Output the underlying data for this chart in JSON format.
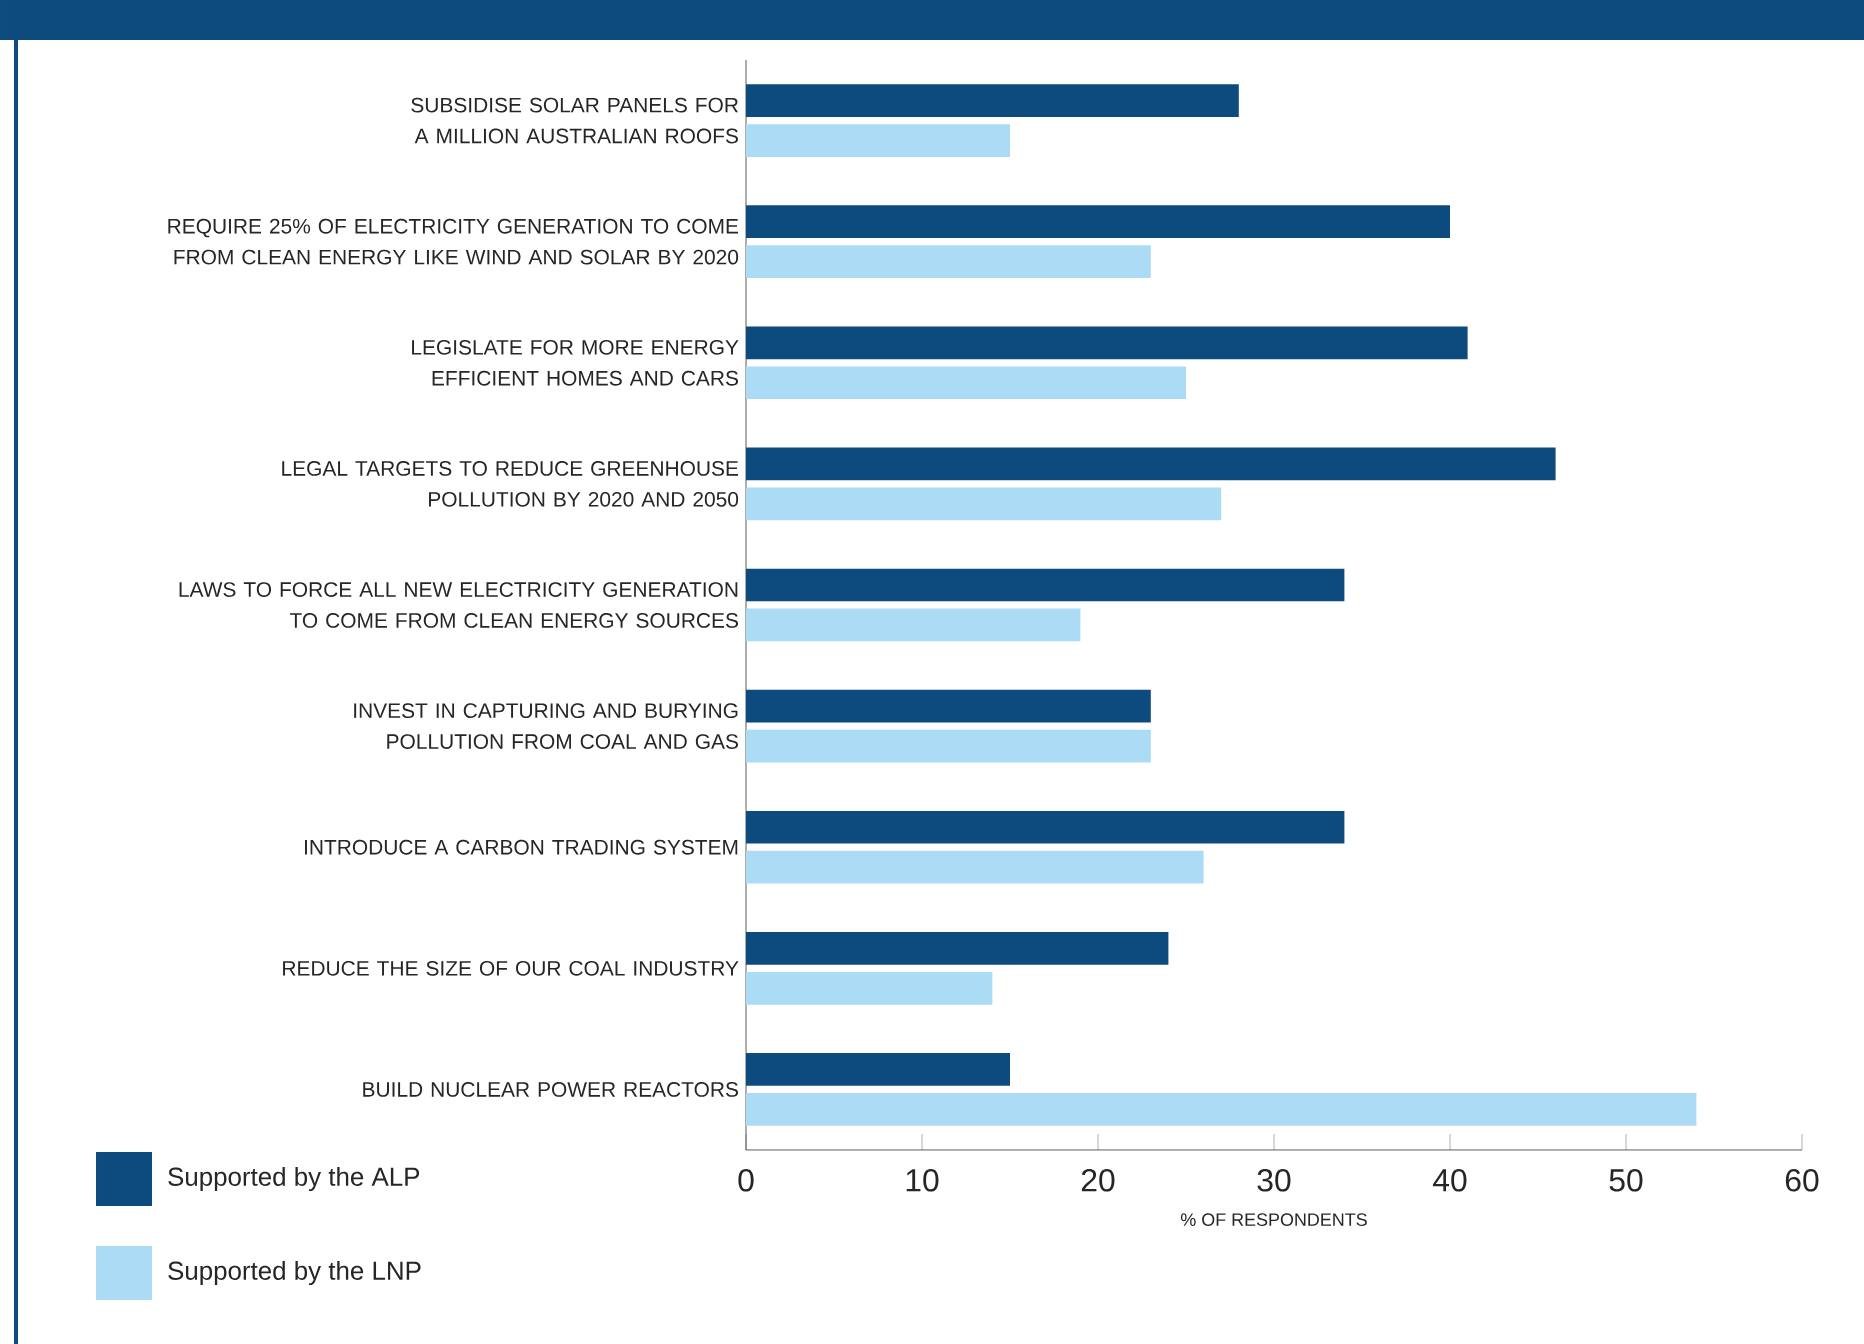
{
  "chart_data": {
    "type": "bar",
    "orientation": "horizontal",
    "xlabel": "% OF RESPONDENTS",
    "categories": [
      "SUBSIDISE SOLAR PANELS FOR A MILLION AUSTRALIAN ROOFS",
      "REQUIRE 25% OF ELECTRICITY GENERATION TO COME FROM CLEAN ENERGY LIKE WIND AND SOLAR BY 2020",
      "LEGISLATE FOR MORE ENERGY EFFICIENT HOMES AND CARS",
      "LEGAL TARGETS TO REDUCE GREENHOUSE POLLUTION BY 2020 AND 2050",
      "LAWS TO FORCE ALL NEW ELECTRICITY GENERATION TO COME FROM CLEAN ENERGY SOURCES",
      "INVEST IN CAPTURING AND BURYING POLLUTION FROM COAL AND GAS",
      "INTRODUCE A CARBON TRADING SYSTEM",
      "REDUCE THE SIZE OF OUR COAL INDUSTRY",
      "BUILD NUCLEAR POWER REACTORS"
    ],
    "series": [
      {
        "name": "Supported by the ALP",
        "color": "#0d4a7e",
        "values": [
          28,
          40,
          41,
          46,
          34,
          23,
          34,
          24,
          15
        ]
      },
      {
        "name": "Supported by the LNP",
        "color": "#acdcf5",
        "values": [
          15,
          23,
          25,
          27,
          19,
          23,
          26,
          14,
          54
        ]
      }
    ],
    "xlim": [
      0,
      60
    ],
    "xticks": [
      0,
      10,
      20,
      30,
      40,
      50,
      60
    ],
    "grid": false,
    "legend": "bottom left"
  }
}
